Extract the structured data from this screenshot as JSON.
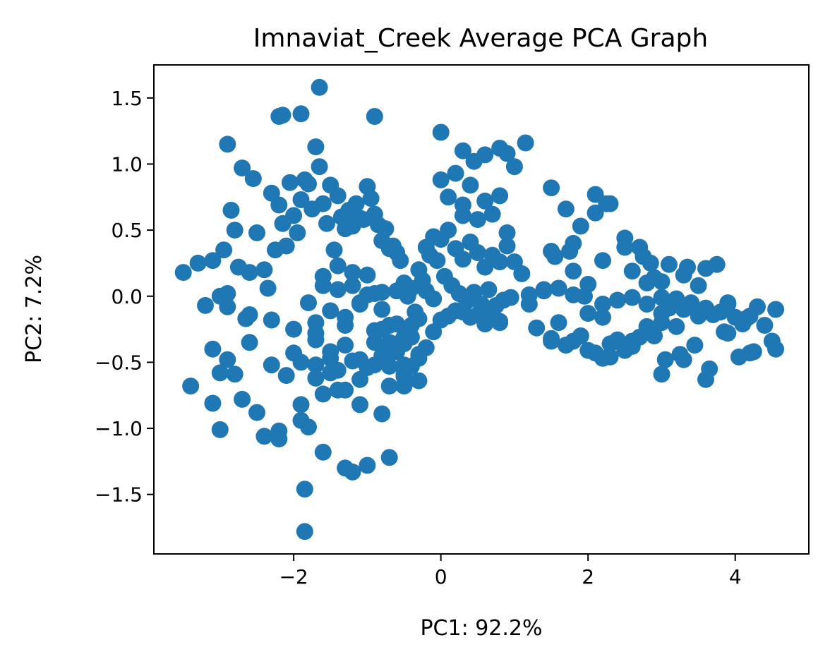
{
  "chart_data": {
    "type": "scatter",
    "title": "Imnaviat_Creek Average PCA Graph",
    "xlabel": "PC1: 92.2%",
    "ylabel": "PC2: 7.2%",
    "xlim": [
      -3.9,
      5.0
    ],
    "ylim": [
      -1.95,
      1.75
    ],
    "xticks": [
      -2,
      0,
      2,
      4
    ],
    "xtick_labels": [
      "−2",
      "0",
      "2",
      "4"
    ],
    "yticks": [
      -1.5,
      -1.0,
      -0.5,
      0.0,
      0.5,
      1.0,
      1.5
    ],
    "ytick_labels": [
      "−1.5",
      "−1.0",
      "−0.5",
      "0.0",
      "0.5",
      "1.0",
      "1.5"
    ],
    "grid": false,
    "colors": {
      "marker": "#1f77b4"
    },
    "series": [
      {
        "x": [
          -3.5,
          -3.3,
          -3.2,
          -3.1,
          -3.1,
          -3.0,
          -3.0,
          -2.95,
          -2.9,
          -2.85,
          -2.8,
          -2.75,
          -2.7,
          -2.65,
          -2.6,
          -2.55,
          -2.5,
          -2.4,
          -2.35,
          -2.3,
          -2.25,
          -2.2,
          -2.2,
          -2.15,
          -2.1,
          -2.05,
          -2.0,
          -1.95,
          -1.9,
          -1.85,
          -1.8,
          -1.75,
          -1.7,
          -1.65,
          -1.6,
          -1.55,
          -1.5,
          -1.45,
          -1.4,
          -1.35,
          -1.3,
          -1.25,
          -1.2,
          -1.15,
          -1.1,
          -1.05,
          -1.0,
          -0.95,
          -0.9,
          -0.85,
          -0.8,
          -0.75,
          -0.7,
          -0.65,
          -0.6,
          -0.55,
          -0.5,
          -0.45,
          -0.4,
          -0.35,
          -0.3,
          -0.25,
          -0.2,
          -0.15,
          -0.1,
          -0.05,
          -3.4,
          -3.1,
          -2.9,
          -2.7,
          -2.5,
          -2.3,
          -2.1,
          -1.9,
          -1.7,
          -1.5,
          -1.3,
          -1.1,
          -0.9,
          -0.7,
          -0.5,
          -0.3,
          -3.0,
          -2.8,
          -2.6,
          -2.4,
          -2.2,
          -2.0,
          -1.8,
          -1.6,
          -1.4,
          -1.2,
          -1.0,
          -0.8,
          -0.6,
          -0.4,
          -2.9,
          -2.6,
          -2.3,
          -2.0,
          -1.7,
          -1.4,
          -1.1,
          -0.8,
          -0.5,
          -2.2,
          -1.9,
          -1.6,
          -1.3,
          -1.0,
          -0.7,
          -1.85,
          -1.85,
          -1.65,
          -2.15,
          -1.9,
          -0.9,
          -2.9,
          -1.7,
          -1.2,
          -1.8,
          -1.6,
          -1.4,
          -1.2,
          -1.0,
          -0.8,
          -0.6,
          -0.4,
          -0.2,
          -1.7,
          -1.5,
          -1.3,
          -1.1,
          -0.9,
          -0.7,
          -0.5,
          -1.6,
          -1.4,
          -1.2,
          -1.0,
          -0.8,
          -0.6,
          -1.9,
          -1.7,
          -1.5,
          -1.3,
          -1.1,
          -0.9,
          -0.7,
          -0.5,
          -0.3,
          -1.5,
          -1.3,
          -1.1,
          -0.9,
          -0.7,
          -0.5,
          -0.3,
          -0.1,
          -0.8,
          -0.6,
          -0.4,
          -0.2,
          -0.7,
          -0.5,
          -0.3,
          0.0,
          0.1,
          0.2,
          0.3,
          0.4,
          0.5,
          0.6,
          0.7,
          0.8,
          0.9,
          1.0,
          0.05,
          0.15,
          0.25,
          0.35,
          0.45,
          0.55,
          0.65,
          0.75,
          0.85,
          0.95,
          0.0,
          0.2,
          0.4,
          0.6,
          0.8,
          1.0,
          1.2,
          1.4,
          0.1,
          0.3,
          0.5,
          0.7,
          0.9,
          1.1,
          0.0,
          0.2,
          0.4,
          0.6,
          0.8,
          -0.1,
          0.1,
          0.3,
          0.5,
          0.7,
          0.0,
          0.3,
          0.6,
          0.9,
          1.15,
          0.3,
          0.45,
          0.8,
          1.3,
          1.5,
          1.6,
          1.7,
          1.8,
          1.9,
          2.0,
          2.1,
          2.2,
          2.3,
          2.4,
          2.5,
          2.6,
          2.7,
          2.8,
          2.9,
          3.0,
          1.4,
          1.6,
          1.8,
          2.0,
          2.2,
          2.4,
          2.6,
          2.8,
          3.0,
          3.2,
          1.5,
          1.7,
          1.9,
          2.1,
          2.3,
          2.5,
          2.7,
          2.9,
          3.1,
          3.3,
          3.5,
          1.2,
          1.55,
          1.8,
          1.95,
          2.2,
          2.5,
          2.75,
          3.0,
          1.5,
          1.75,
          1.8,
          2.1,
          2.25,
          2.6,
          2.85,
          3.1,
          3.2,
          3.3,
          3.4,
          3.5,
          3.6,
          3.7,
          3.8,
          3.9,
          4.0,
          4.1,
          4.2,
          4.3,
          4.4,
          4.55,
          3.05,
          3.25,
          3.45,
          3.65,
          3.85,
          4.05,
          4.25,
          4.5,
          3.0,
          3.3,
          3.6,
          3.9,
          4.2,
          4.55,
          3.0,
          3.35,
          3.6,
          3.75,
          3.2,
          3.55,
          2.6,
          2.8,
          3.9,
          4.15,
          2.0,
          2.2,
          2.3,
          1.5,
          1.7,
          1.2,
          0.8
        ],
        "y": [
          0.18,
          0.25,
          -0.07,
          -0.4,
          0.27,
          0.0,
          -0.58,
          0.35,
          1.15,
          0.65,
          0.5,
          0.22,
          0.97,
          -0.17,
          0.18,
          0.89,
          0.48,
          0.2,
          0.06,
          0.78,
          0.35,
          0.69,
          1.36,
          0.55,
          0.38,
          0.86,
          0.61,
          0.48,
          0.73,
          0.88,
          0.85,
          0.66,
          1.13,
          0.98,
          0.7,
          0.55,
          0.84,
          0.35,
          0.76,
          0.6,
          0.51,
          0.65,
          0.53,
          0.7,
          0.59,
          0.58,
          0.83,
          0.74,
          0.62,
          0.54,
          0.42,
          0.51,
          0.36,
          0.38,
          0.33,
          0.27,
          0.1,
          0.0,
          0.06,
          -0.12,
          0.2,
          0.12,
          0.37,
          0.31,
          0.45,
          0.27,
          -0.68,
          -0.81,
          -0.48,
          -0.78,
          -0.88,
          -0.18,
          -0.6,
          -0.82,
          -0.52,
          -0.58,
          -0.71,
          -0.63,
          -0.52,
          -0.68,
          -0.59,
          -0.47,
          -1.01,
          -0.59,
          -0.35,
          -1.06,
          -1.02,
          -0.43,
          -0.99,
          -0.74,
          -0.56,
          -0.49,
          -0.54,
          -0.45,
          -0.42,
          -0.53,
          0.02,
          -0.14,
          -0.52,
          -0.25,
          -0.62,
          -0.71,
          -0.82,
          -0.89,
          -0.68,
          -1.08,
          -0.94,
          -1.18,
          -1.3,
          -1.28,
          -1.22,
          -1.78,
          -1.46,
          1.58,
          1.37,
          1.38,
          1.36,
          -0.08,
          -0.28,
          -1.33,
          -0.05,
          0.08,
          0.23,
          0.18,
          0.01,
          -0.1,
          -0.21,
          -0.31,
          -0.39,
          -0.2,
          -0.11,
          -0.16,
          -0.06,
          0.02,
          -0.22,
          -0.36,
          0.15,
          0.05,
          0.08,
          0.16,
          0.03,
          0.04,
          -0.5,
          -0.33,
          -0.47,
          -0.37,
          -0.48,
          -0.35,
          -0.41,
          -0.52,
          -0.44,
          -0.42,
          -0.22,
          -0.05,
          -0.26,
          -0.35,
          -0.31,
          -0.17,
          -0.02,
          -0.25,
          -0.36,
          -0.22,
          0.04,
          -0.53,
          -0.61,
          -0.64,
          0.43,
          0.5,
          0.36,
          0.28,
          0.41,
          0.33,
          0.22,
          0.31,
          0.26,
          0.38,
          0.26,
          0.15,
          0.08,
          0.02,
          -0.04,
          0.03,
          -0.06,
          0.05,
          -0.07,
          -0.03,
          -0.01,
          0.88,
          0.93,
          0.84,
          0.72,
          0.76,
          0.98,
          0.01,
          0.05,
          0.75,
          0.69,
          0.58,
          0.62,
          0.48,
          0.17,
          -0.18,
          -0.11,
          -0.16,
          -0.21,
          -0.2,
          -0.27,
          -0.15,
          -0.12,
          -0.14,
          -0.12,
          1.24,
          1.1,
          1.07,
          1.08,
          1.16,
          0.61,
          1.02,
          1.12,
          -0.24,
          -0.32,
          -0.2,
          -0.37,
          -0.34,
          -0.3,
          -0.41,
          -0.43,
          -0.47,
          -0.36,
          -0.33,
          -0.41,
          -0.38,
          -0.31,
          -0.23,
          -0.3,
          -0.2,
          0.04,
          0.06,
          0.01,
          0.09,
          -0.06,
          -0.03,
          -0.01,
          0.1,
          -0.13,
          -0.02,
          0.82,
          0.66,
          0.53,
          0.77,
          0.7,
          0.44,
          0.37,
          0.14,
          0.24,
          0.16,
          0.08,
          0.01,
          0.3,
          0.19,
          0.0,
          0.27,
          0.37,
          0.3,
          0.11,
          0.34,
          0.34,
          0.4,
          0.63,
          0.7,
          0.19,
          0.25,
          -0.09,
          -0.03,
          -0.1,
          -0.05,
          -0.15,
          -0.09,
          -0.14,
          -0.12,
          -0.06,
          -0.16,
          -0.21,
          -0.15,
          -0.08,
          -0.22,
          -0.1,
          -0.48,
          -0.44,
          -0.37,
          -0.55,
          -0.27,
          -0.46,
          -0.42,
          -0.34,
          -0.59,
          -0.48,
          -0.63,
          -0.28,
          -0.43,
          -0.4,
          -0.01,
          0.22,
          0.21,
          0.24,
          -0.23,
          -0.11,
          -0.34,
          -0.06,
          -0.05,
          -0.17,
          -0.13,
          -0.16,
          -0.46,
          -0.34,
          -0.37,
          -0.06,
          -0.19
        ]
      }
    ]
  }
}
